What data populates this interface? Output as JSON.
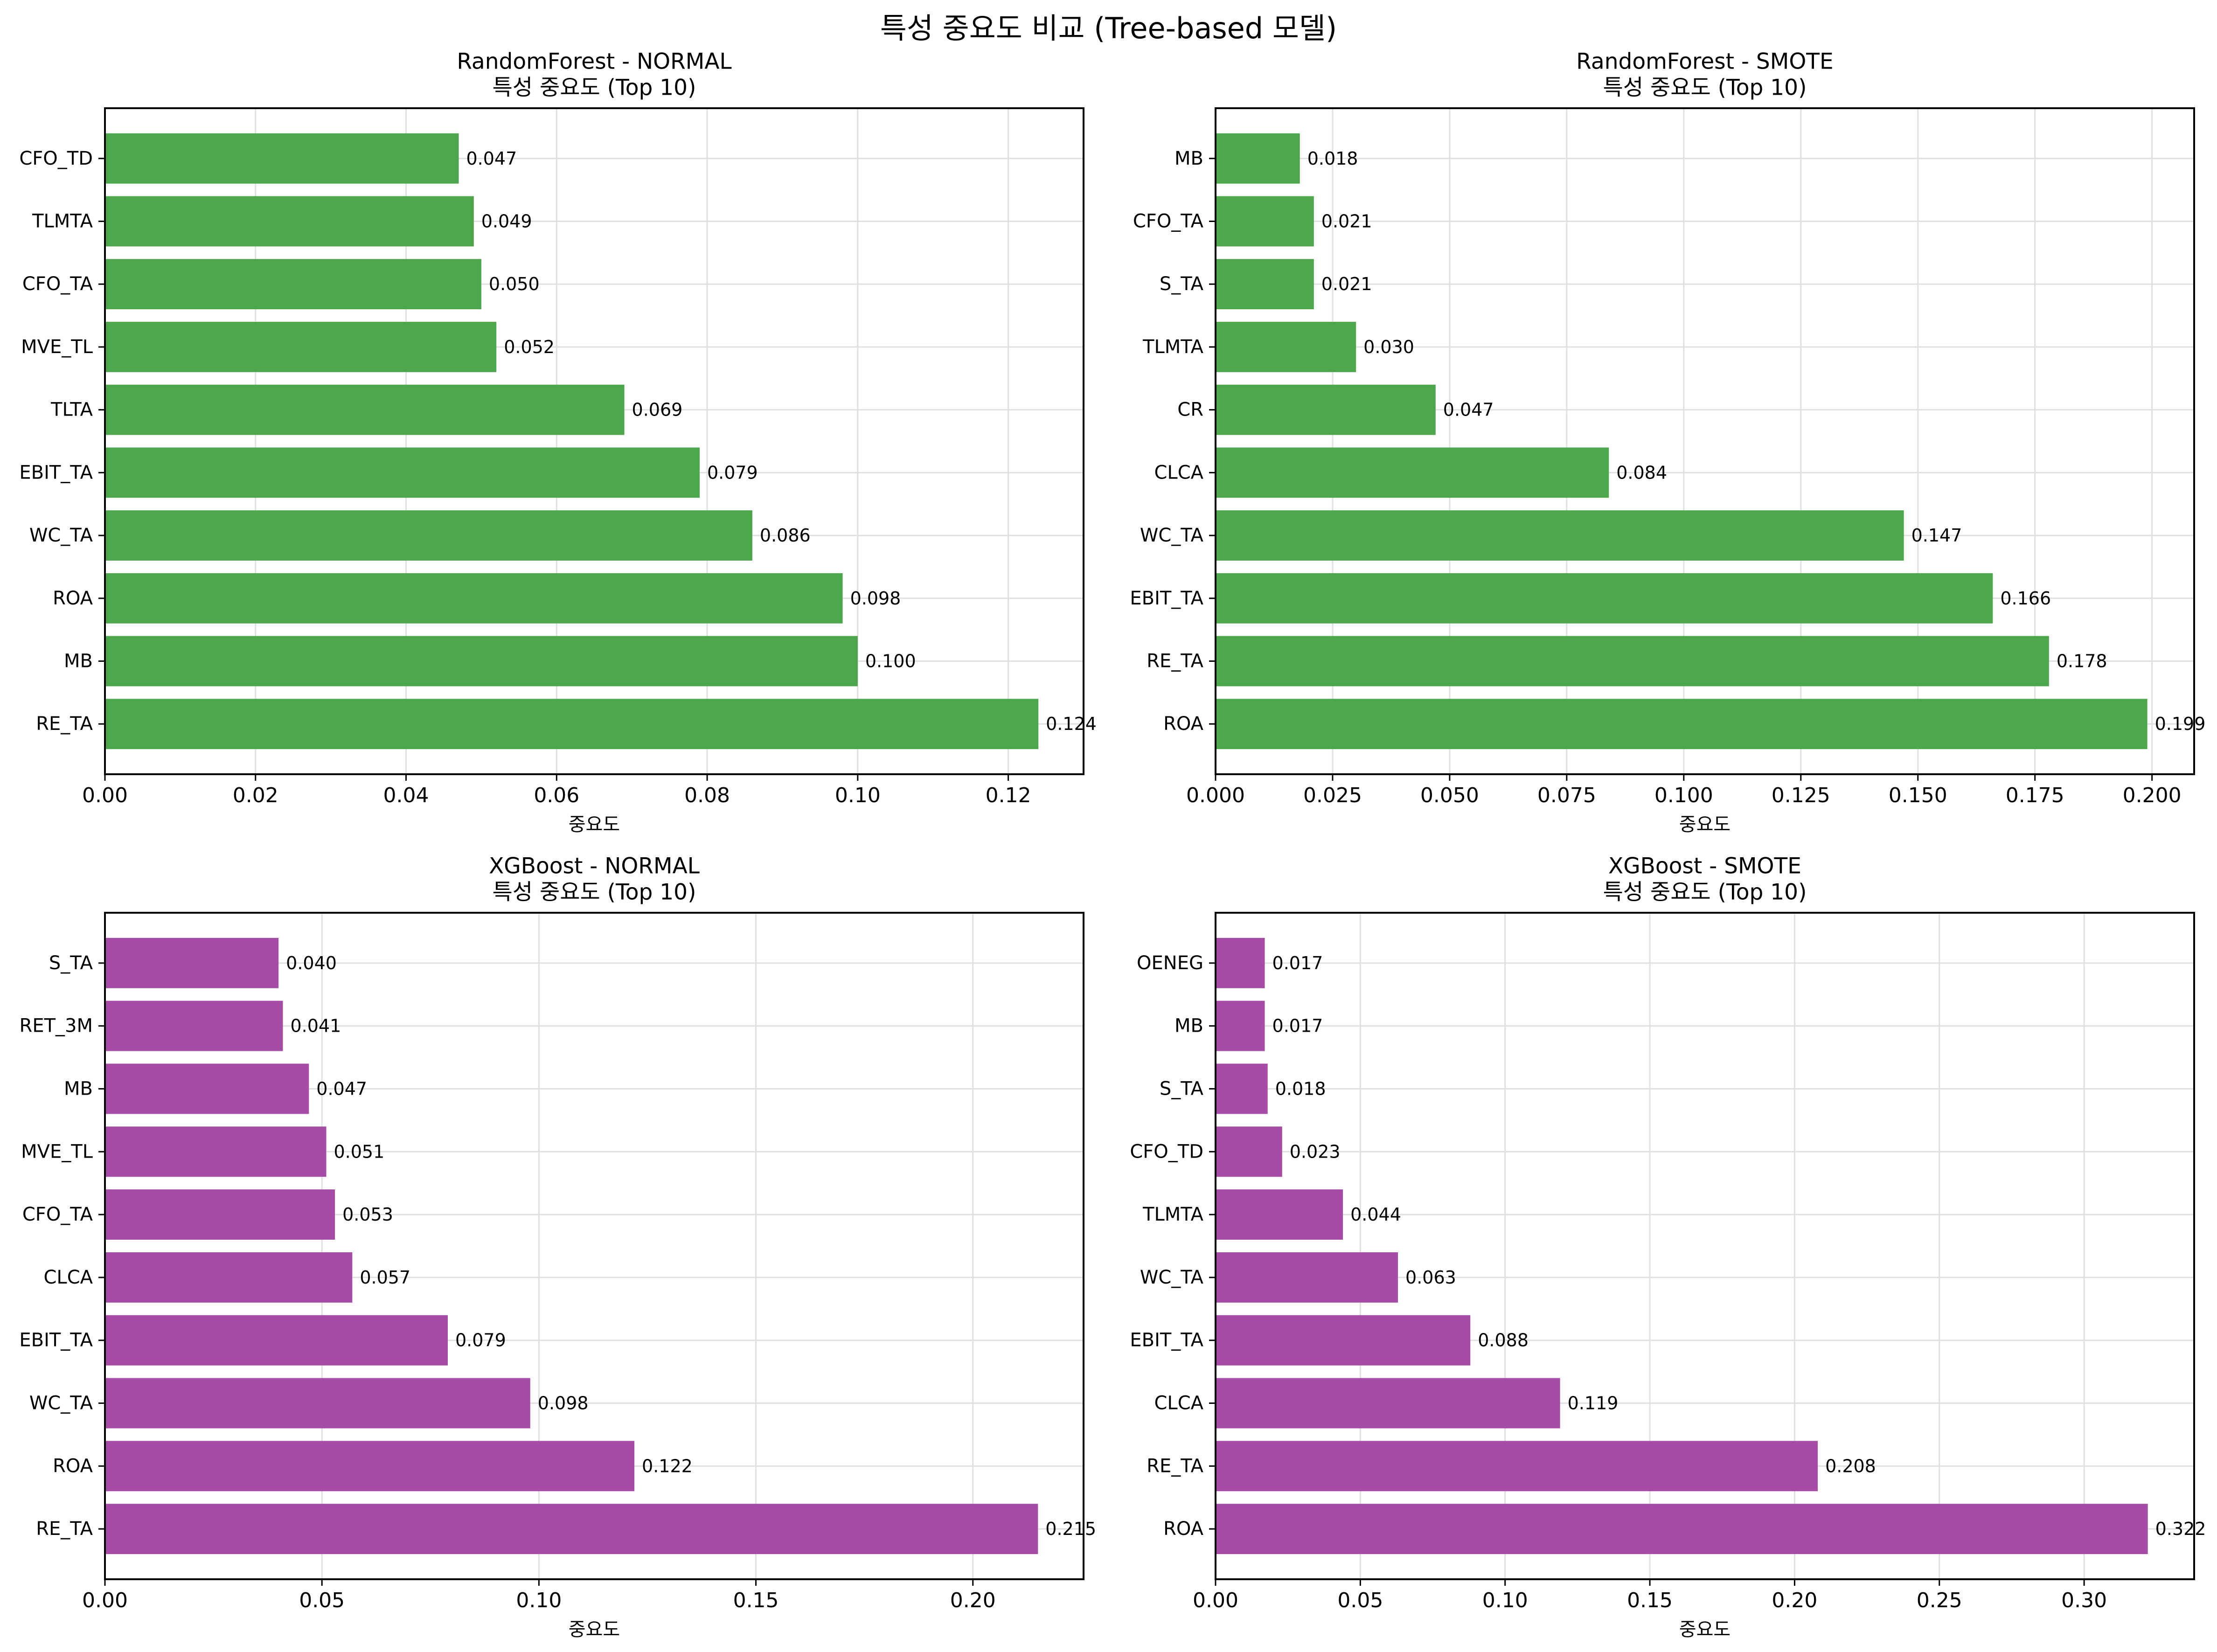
{
  "figure": {
    "suptitle": "특성 중요도 비교 (Tree-based 모델)"
  },
  "colors": {
    "rf_bar": "#4CA64C",
    "xgb_bar": "#A64CA6",
    "grid": "#e0e0e0",
    "axis": "#000000"
  },
  "chart_data": [
    {
      "type": "bar",
      "orientation": "horizontal",
      "title": "RandomForest - NORMAL",
      "subtitle": "특성 중요도 (Top 10)",
      "xlabel": "중요도",
      "ylabel": "",
      "color_key": "rf_bar",
      "grid": true,
      "xlim": [
        0,
        0.13
      ],
      "xticks": [
        0,
        0.02,
        0.04,
        0.06,
        0.08,
        0.1,
        0.12
      ],
      "tick_labels": [
        "0.00",
        "0.02",
        "0.04",
        "0.06",
        "0.08",
        "0.10",
        "0.12"
      ],
      "categories": [
        "RE_TA",
        "MB",
        "ROA",
        "WC_TA",
        "EBIT_TA",
        "TLTA",
        "MVE_TL",
        "CFO_TA",
        "TLMTA",
        "CFO_TD"
      ],
      "values": [
        0.124,
        0.1,
        0.098,
        0.086,
        0.079,
        0.069,
        0.052,
        0.05,
        0.049,
        0.047
      ],
      "value_labels": [
        "0.124",
        "0.100",
        "0.098",
        "0.086",
        "0.079",
        "0.069",
        "0.052",
        "0.050",
        "0.049",
        "0.047"
      ]
    },
    {
      "type": "bar",
      "orientation": "horizontal",
      "title": "RandomForest - SMOTE",
      "subtitle": "특성 중요도 (Top 10)",
      "xlabel": "중요도",
      "ylabel": "",
      "color_key": "rf_bar",
      "grid": true,
      "xlim": [
        0,
        0.209
      ],
      "xticks": [
        0,
        0.025,
        0.05,
        0.075,
        0.1,
        0.125,
        0.15,
        0.175,
        0.2
      ],
      "tick_labels": [
        "0.000",
        "0.025",
        "0.050",
        "0.075",
        "0.100",
        "0.125",
        "0.150",
        "0.175",
        "0.200"
      ],
      "categories": [
        "ROA",
        "RE_TA",
        "EBIT_TA",
        "WC_TA",
        "CLCA",
        "CR",
        "TLMTA",
        "S_TA",
        "CFO_TA",
        "MB"
      ],
      "values": [
        0.199,
        0.178,
        0.166,
        0.147,
        0.084,
        0.047,
        0.03,
        0.021,
        0.021,
        0.018
      ],
      "value_labels": [
        "0.199",
        "0.178",
        "0.166",
        "0.147",
        "0.084",
        "0.047",
        "0.030",
        "0.021",
        "0.021",
        "0.018"
      ]
    },
    {
      "type": "bar",
      "orientation": "horizontal",
      "title": "XGBoost - NORMAL",
      "subtitle": "특성 중요도 (Top 10)",
      "xlabel": "중요도",
      "ylabel": "",
      "color_key": "xgb_bar",
      "grid": true,
      "xlim": [
        0,
        0.2255
      ],
      "xticks": [
        0,
        0.05,
        0.1,
        0.15,
        0.2
      ],
      "tick_labels": [
        "0.00",
        "0.05",
        "0.10",
        "0.15",
        "0.20"
      ],
      "categories": [
        "RE_TA",
        "ROA",
        "WC_TA",
        "EBIT_TA",
        "CLCA",
        "CFO_TA",
        "MVE_TL",
        "MB",
        "RET_3M",
        "S_TA"
      ],
      "values": [
        0.215,
        0.122,
        0.098,
        0.079,
        0.057,
        0.053,
        0.051,
        0.047,
        0.041,
        0.04
      ],
      "value_labels": [
        "0.215",
        "0.122",
        "0.098",
        "0.079",
        "0.057",
        "0.053",
        "0.051",
        "0.047",
        "0.041",
        "0.040"
      ]
    },
    {
      "type": "bar",
      "orientation": "horizontal",
      "title": "XGBoost - SMOTE",
      "subtitle": "특성 중요도 (Top 10)",
      "xlabel": "중요도",
      "ylabel": "",
      "color_key": "xgb_bar",
      "grid": true,
      "xlim": [
        0,
        0.338
      ],
      "xticks": [
        0,
        0.05,
        0.1,
        0.15,
        0.2,
        0.25,
        0.3
      ],
      "tick_labels": [
        "0.00",
        "0.05",
        "0.10",
        "0.15",
        "0.20",
        "0.25",
        "0.30"
      ],
      "categories": [
        "ROA",
        "RE_TA",
        "CLCA",
        "EBIT_TA",
        "WC_TA",
        "TLMTA",
        "CFO_TD",
        "S_TA",
        "MB",
        "OENEG"
      ],
      "values": [
        0.322,
        0.208,
        0.119,
        0.088,
        0.063,
        0.044,
        0.023,
        0.018,
        0.017,
        0.017
      ],
      "value_labels": [
        "0.322",
        "0.208",
        "0.119",
        "0.088",
        "0.063",
        "0.044",
        "0.023",
        "0.018",
        "0.017",
        "0.017"
      ]
    }
  ]
}
